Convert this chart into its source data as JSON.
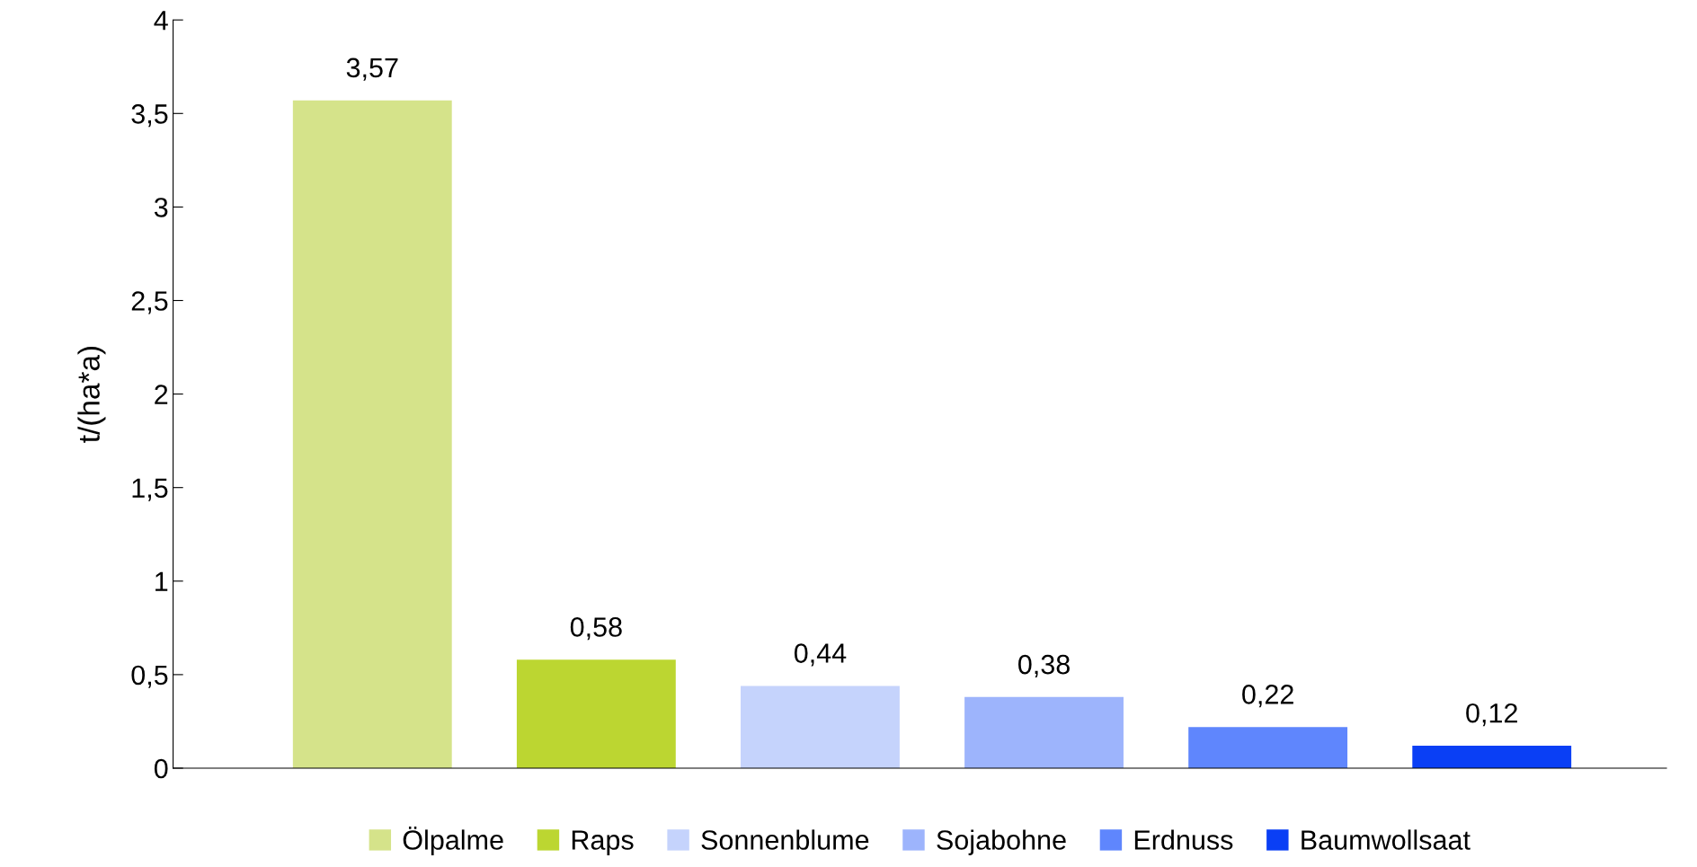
{
  "chart_data": {
    "type": "bar",
    "ylabel": "t/(ha*a)",
    "categories": [
      null,
      null,
      null,
      null,
      null,
      null
    ],
    "series": [
      {
        "name": "Ölpalme",
        "color": "#d5e38a",
        "values": [
          3.57,
          null,
          null,
          null,
          null,
          null
        ],
        "value_labels": [
          "3,57",
          null,
          null,
          null,
          null,
          null
        ]
      },
      {
        "name": "Raps",
        "color": "#bcd631",
        "values": [
          null,
          0.58,
          null,
          null,
          null,
          null
        ],
        "value_labels": [
          null,
          "0,58",
          null,
          null,
          null,
          null
        ]
      },
      {
        "name": "Sonnenblume",
        "color": "#c5d3fc",
        "values": [
          null,
          null,
          0.44,
          null,
          null,
          null
        ],
        "value_labels": [
          null,
          null,
          "0,44",
          null,
          null,
          null
        ]
      },
      {
        "name": "Sojabohne",
        "color": "#9db4fc",
        "values": [
          null,
          null,
          null,
          0.38,
          null,
          null
        ],
        "value_labels": [
          null,
          null,
          null,
          "0,38",
          null,
          null
        ]
      },
      {
        "name": "Erdnuss",
        "color": "#5f86fd",
        "values": [
          null,
          null,
          null,
          null,
          0.22,
          null
        ],
        "value_labels": [
          null,
          null,
          null,
          null,
          "0,22",
          null
        ]
      },
      {
        "name": "Baumwollsaat",
        "color": "#0a3ff5",
        "values": [
          null,
          null,
          null,
          null,
          null,
          0.12
        ],
        "value_labels": [
          null,
          null,
          null,
          null,
          null,
          "0,12"
        ]
      }
    ],
    "ylim": [
      0,
      4
    ],
    "yticks": [
      0,
      {
        "value": 0.5,
        "label": "0,5"
      },
      1,
      {
        "value": 1.5,
        "label": "1,5"
      },
      2,
      {
        "value": 2.5,
        "label": "2,5"
      },
      3,
      {
        "value": 3.5,
        "label": "3,5"
      },
      4
    ],
    "grid": false,
    "legend": "bottom"
  }
}
